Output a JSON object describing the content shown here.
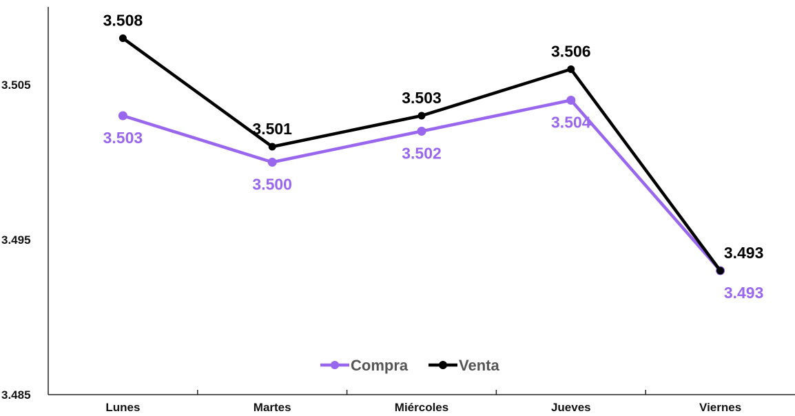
{
  "chart_data": {
    "type": "line",
    "title": "",
    "xlabel": "",
    "ylabel": "",
    "categories": [
      "Lunes",
      "Martes",
      "Miércoles",
      "Jueves",
      "Viernes"
    ],
    "ylim": [
      3.485,
      3.511
    ],
    "yticks": [
      "3.485",
      "3.495",
      "3.505"
    ],
    "ytick_values": [
      3.485,
      3.495,
      3.505
    ],
    "grid": false,
    "legend_position": "bottom-center",
    "series": [
      {
        "name": "Compra",
        "color": "#9966ee",
        "values": [
          3.503,
          3.5,
          3.502,
          3.504,
          3.493
        ],
        "labels": [
          "3.503",
          "3.500",
          "3.502",
          "3.504",
          "3.493"
        ]
      },
      {
        "name": "Venta",
        "color": "#000000",
        "values": [
          3.508,
          3.501,
          3.503,
          3.506,
          3.493
        ],
        "labels": [
          "3.508",
          "3.501",
          "3.503",
          "3.506",
          "3.493"
        ]
      }
    ]
  }
}
